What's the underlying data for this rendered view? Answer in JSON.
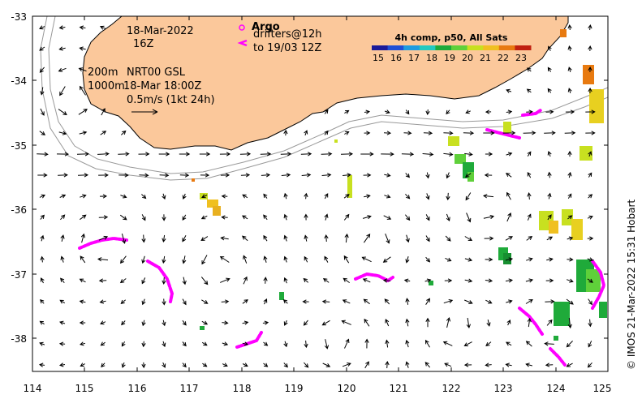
{
  "axes": {
    "lon_ticks": [
      "114",
      "115",
      "116",
      "117",
      "118",
      "119",
      "120",
      "121",
      "122",
      "123",
      "124",
      "125"
    ],
    "lat_ticks": [
      "-33",
      "-34",
      "-35",
      "-36",
      "-37",
      "-38"
    ]
  },
  "annotations": {
    "date": "18-Mar-2022",
    "hour": "16Z",
    "depth_200": "200m",
    "depth_1000": "1000m",
    "nrt_label": "NRT00 GSL",
    "nrt_time": "18-Mar 18:00Z",
    "speed_scale": "0.5m/s (1kt 24h)"
  },
  "legend": {
    "argo_label": "Argo",
    "drifters_label": "drifters@12h",
    "drifters_to": "to 19/03 12Z",
    "sst_title": "4h comp, p50, All Sats",
    "sst_ticks": [
      "15",
      "16",
      "17",
      "18",
      "19",
      "20",
      "21",
      "22",
      "23"
    ]
  },
  "credit": "© IMOS 21-Mar-2022 15:31 Hobart",
  "colors": {
    "land": "#fbc89b",
    "drifter": "#ff00ff",
    "sst_ramp": [
      "#1a1a9a",
      "#1f4fd6",
      "#1e9be0",
      "#22c9c0",
      "#1faa3a",
      "#5fd03a",
      "#c8e020",
      "#f0c020",
      "#e87a10",
      "#c02010"
    ]
  }
}
